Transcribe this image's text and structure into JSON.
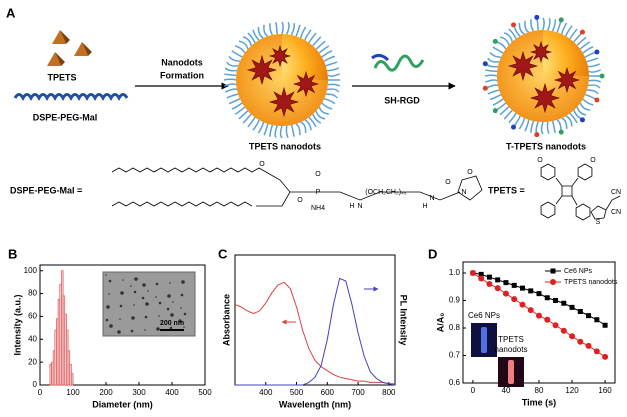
{
  "scheme": {
    "panel": "A",
    "reagent_1": "TPETS",
    "reagent_2": "DSPE-PEG-Mal",
    "step_1": [
      "Nanodots",
      "Formation"
    ],
    "step_2": "SH-RGD",
    "product_1": "TPETS nanodots",
    "product_2": "T-TPETS nanodots",
    "formula_1": "DSPE-PEG-Mal =",
    "formula_2": "TPETS =",
    "dspe_labels": [
      "O",
      "O",
      "P",
      "O",
      "NH4",
      "H",
      "N",
      "(OCH₂CH₂)₄₅",
      "H",
      "N",
      "O",
      "N",
      "O"
    ],
    "tpets_labels": [
      "O",
      "O",
      "S",
      "CN",
      "CN"
    ]
  },
  "chart_data": [
    {
      "type": "histogram",
      "panel": "B",
      "x_label": "Diameter (nm)",
      "y_label": "Intensity (a.u.)",
      "color": "#e06060",
      "bins": [
        30,
        35,
        40,
        45,
        50,
        55,
        60,
        65,
        70,
        75,
        80,
        85,
        90,
        95,
        100
      ],
      "values": [
        18,
        20,
        30,
        48,
        58,
        75,
        88,
        100,
        78,
        62,
        48,
        30,
        18,
        10
      ],
      "xlim": [
        0,
        500
      ],
      "xticks": [
        0,
        100,
        200,
        300,
        400,
        500
      ],
      "ylim": [
        0,
        105
      ],
      "yticks": [
        0,
        20,
        40,
        60,
        80,
        100
      ],
      "annotations": [
        "200 nm"
      ]
    },
    {
      "type": "line",
      "panel": "C",
      "x_label": "Wavelength (nm)",
      "y_label": "Absorbance",
      "y2_label": "PL Intensity",
      "x": [
        300,
        320,
        340,
        360,
        380,
        400,
        420,
        440,
        460,
        480,
        500,
        520,
        540,
        560,
        580,
        600,
        620,
        640,
        660,
        680,
        700,
        720,
        740,
        760,
        780,
        800,
        820
      ],
      "series": [
        {
          "color": "#d84040",
          "values": [
            0.62,
            0.6,
            0.57,
            0.55,
            0.57,
            0.63,
            0.71,
            0.77,
            0.79,
            0.74,
            0.6,
            0.42,
            0.28,
            0.19,
            0.14,
            0.11,
            0.08,
            0.06,
            0.05,
            0.04,
            0.03,
            0.03,
            0.02,
            0.02,
            0.02,
            0.01,
            0.01
          ]
        },
        {
          "color": "#4040c0",
          "values": [
            0,
            0,
            0,
            0,
            0,
            0,
            0,
            0,
            0,
            0,
            0,
            0,
            0.02,
            0.06,
            0.15,
            0.35,
            0.62,
            0.82,
            0.8,
            0.62,
            0.4,
            0.22,
            0.1,
            0.05,
            0.02,
            0.01,
            0
          ]
        }
      ],
      "xlim": [
        300,
        820
      ],
      "xticks": [
        400,
        500,
        600,
        700,
        800
      ],
      "ylim": [
        0,
        1
      ]
    },
    {
      "type": "line",
      "panel": "D",
      "x_label": "Time (s)",
      "y_label": "A/A₀",
      "x": [
        0,
        10,
        20,
        30,
        40,
        50,
        60,
        70,
        80,
        90,
        100,
        110,
        120,
        130,
        140,
        150,
        160
      ],
      "series": [
        {
          "name": "Ce6 NPs",
          "color": "#000000",
          "marker": "square",
          "values": [
            1.0,
            0.995,
            0.985,
            0.975,
            0.965,
            0.955,
            0.945,
            0.935,
            0.925,
            0.91,
            0.9,
            0.89,
            0.875,
            0.86,
            0.845,
            0.83,
            0.81
          ]
        },
        {
          "name": "TPETS nanodots",
          "color": "#e02020",
          "marker": "circle",
          "values": [
            1.0,
            0.98,
            0.96,
            0.945,
            0.925,
            0.905,
            0.885,
            0.865,
            0.845,
            0.83,
            0.81,
            0.79,
            0.77,
            0.75,
            0.735,
            0.715,
            0.695
          ]
        }
      ],
      "xlim": [
        -12,
        172
      ],
      "xticks": [
        0,
        40,
        80,
        120,
        160
      ],
      "ylim": [
        0.6,
        1.04
      ],
      "yticks": [
        0.6,
        0.7,
        0.8,
        0.9,
        1.0
      ],
      "legend": "top-right",
      "annotations": [
        "Ce6 NPs",
        "TPETS",
        "nanodots"
      ]
    }
  ]
}
